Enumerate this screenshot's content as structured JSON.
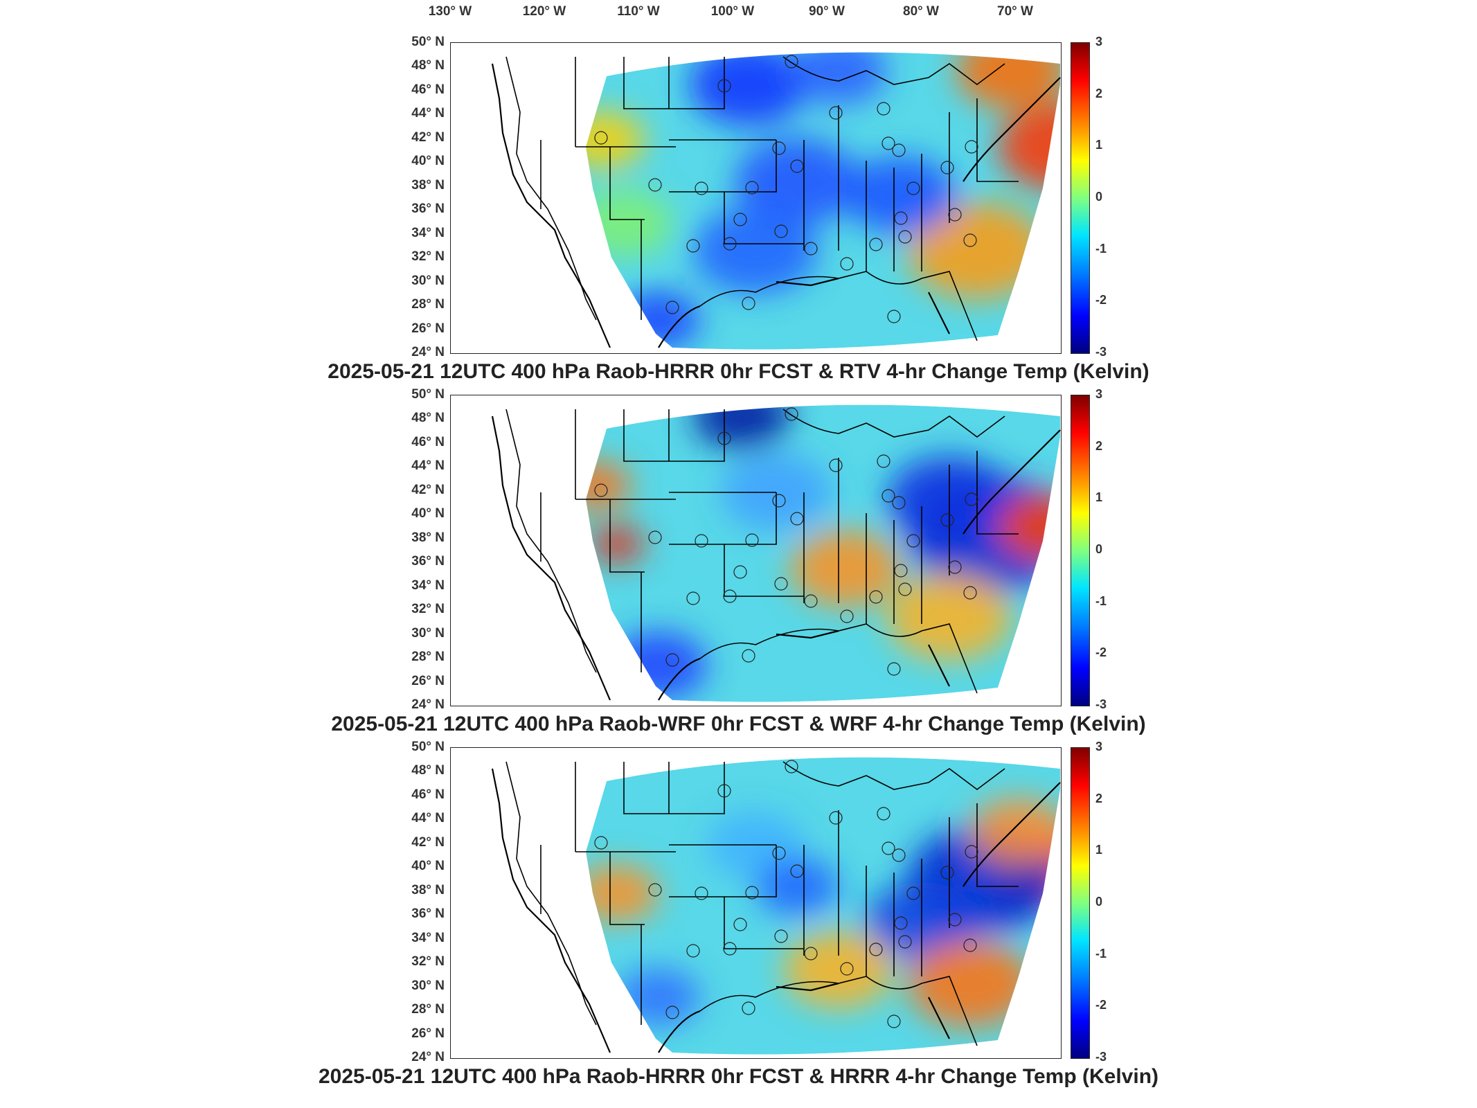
{
  "lon_labels": [
    "130° W",
    "120° W",
    "110° W",
    "100° W",
    "90° W",
    "80° W",
    "70° W"
  ],
  "lat_labels": [
    "50° N",
    "48° N",
    "46° N",
    "44° N",
    "42° N",
    "40° N",
    "38° N",
    "36° N",
    "34° N",
    "32° N",
    "30° N",
    "28° N",
    "26° N",
    "24° N"
  ],
  "colorbar": {
    "min": -3,
    "max": 3,
    "ticks": [
      "3",
      "2",
      "1",
      "0",
      "-1",
      "-2",
      "-3"
    ],
    "colormap": "jet",
    "colors": [
      "#800000",
      "#ff0000",
      "#ffff00",
      "#80ff80",
      "#00e5ff",
      "#0000ff",
      "#000080"
    ]
  },
  "panels": [
    {
      "title": "2025-05-21 12UTC 400 hPa Raob-HRRR 0hr FCST & RTV 4-hr Change Temp (Kelvin)"
    },
    {
      "title": "2025-05-21 12UTC 400 hPa Raob-WRF 0hr FCST & WRF 4-hr Change Temp (Kelvin)"
    },
    {
      "title": "2025-05-21 12UTC 400 hPa Raob-HRRR 0hr FCST & HRRR 4-hr Change Temp (Kelvin)"
    }
  ]
}
